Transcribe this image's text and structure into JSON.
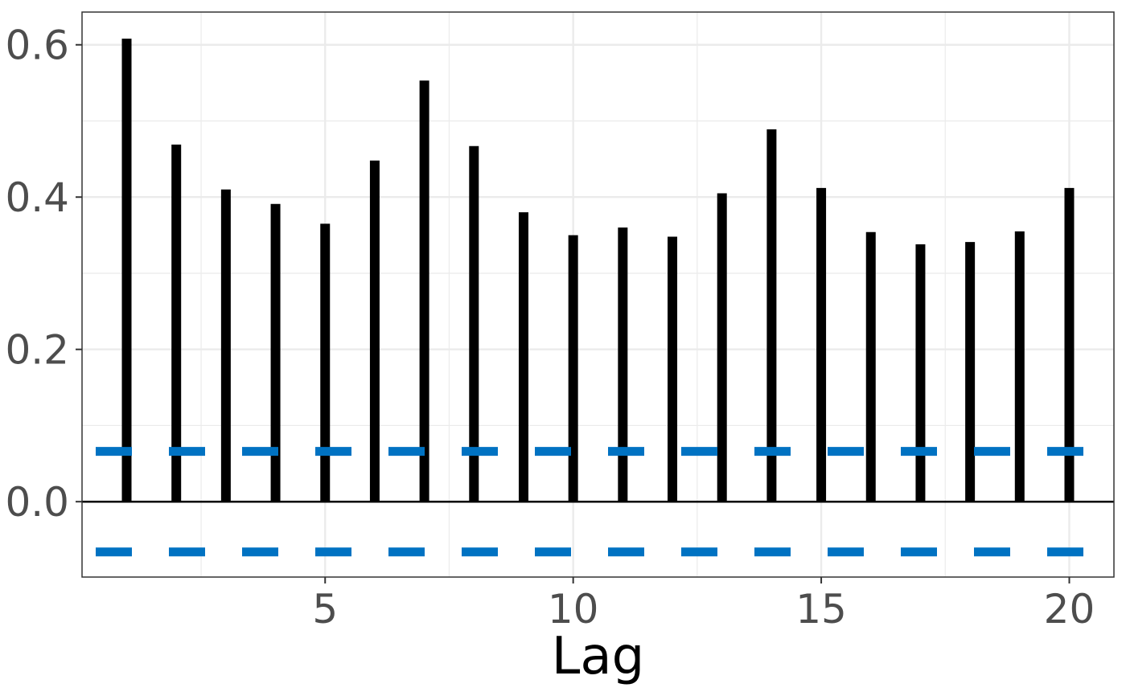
{
  "chart_data": {
    "type": "bar",
    "subtype": "acf-lollipop",
    "title": "",
    "xlabel": "Lag",
    "ylabel": "",
    "x": [
      1,
      2,
      3,
      4,
      5,
      6,
      7,
      8,
      9,
      10,
      11,
      12,
      13,
      14,
      15,
      16,
      17,
      18,
      19,
      20
    ],
    "values": [
      0.608,
      0.469,
      0.41,
      0.391,
      0.365,
      0.448,
      0.553,
      0.467,
      0.38,
      0.35,
      0.36,
      0.348,
      0.405,
      0.489,
      0.412,
      0.354,
      0.338,
      0.341,
      0.355,
      0.412
    ],
    "xlim": [
      0.1,
      20.9
    ],
    "ylim": [
      -0.099,
      0.643
    ],
    "x_ticks": [
      5,
      10,
      15,
      20
    ],
    "x_tick_labels": [
      "5",
      "10",
      "15",
      "20"
    ],
    "y_ticks": [
      0.0,
      0.2,
      0.4,
      0.6
    ],
    "y_tick_labels": [
      "0.0",
      "0.2",
      "0.4",
      "0.6"
    ],
    "confidence_bounds": [
      0.066,
      -0.066
    ],
    "grid": true,
    "legend": "none",
    "colors": {
      "bars": "#000000",
      "bounds": "#0072c2",
      "grid": "#ebebeb",
      "zero_line": "#000000",
      "panel_border": "#333333"
    }
  }
}
